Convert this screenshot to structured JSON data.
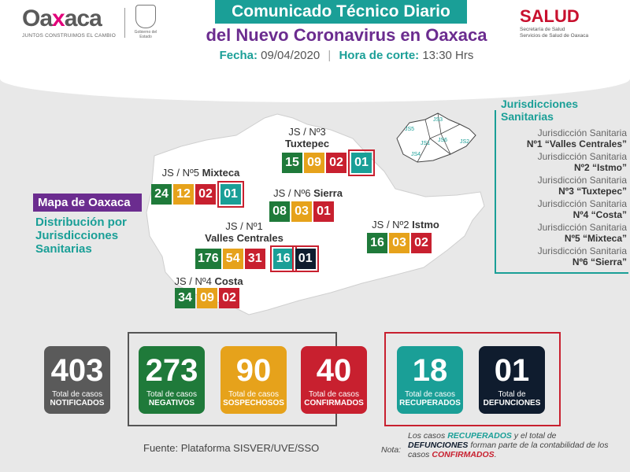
{
  "header": {
    "logo_word_a": "Oa",
    "logo_word_x": "x",
    "logo_word_b": "aca",
    "logo_tag": "JUNTOS CONSTRUIMOS EL CAMBIO",
    "seal_text": "Gobierno del Estado",
    "title_line1": "Comunicado Técnico Diario",
    "title_line2": "del Nuevo Coronavirus en Oaxaca",
    "fecha_label": "Fecha:",
    "fecha_value": "09/04/2020",
    "hora_label": "Hora de corte:",
    "hora_value": "13:30 Hrs",
    "salud_word": "SALUD",
    "salud_sub1": "Secretaría de Salud",
    "salud_sub2": "Servicios de Salud de Oaxaca"
  },
  "map": {
    "title": "Mapa de Oaxaca",
    "subtitle": "Distribución por Jurisdicciones Sanitarias",
    "jurisdictions": [
      {
        "id": "js3",
        "line1": "JS / Nº3",
        "line2": "Tuxtepec",
        "values": [
          "15",
          "09",
          "02",
          "01"
        ]
      },
      {
        "id": "js5",
        "line1": "JS / Nº5",
        "line2": "Mixteca",
        "values": [
          "24",
          "12",
          "02",
          "01"
        ]
      },
      {
        "id": "js6",
        "line1": "JS / Nº6",
        "line2": "Sierra",
        "values": [
          "08",
          "03",
          "01"
        ]
      },
      {
        "id": "js2",
        "line1": "JS / Nº2",
        "line2": "Istmo",
        "values": [
          "16",
          "03",
          "02"
        ]
      },
      {
        "id": "js1",
        "line1": "JS / Nº1",
        "line2": "Valles Centrales",
        "values": [
          "176",
          "54",
          "31",
          "16",
          "01"
        ]
      },
      {
        "id": "js4",
        "line1": "JS / Nº4",
        "line2": "Costa",
        "values": [
          "34",
          "09",
          "02"
        ]
      }
    ],
    "inset_labels": [
      "JS5",
      "JS3",
      "JS6",
      "JS1",
      "JS2",
      "JS4"
    ]
  },
  "legend": {
    "title": "Jurisdicciones Sanitarias",
    "items": [
      {
        "a": "Jurisdicción Sanitaria",
        "b": "Nº1 “Valles Centrales”"
      },
      {
        "a": "Jurisdicción Sanitaria",
        "b": "Nº2 “Istmo”"
      },
      {
        "a": "Jurisdicción Sanitaria",
        "b": "Nº3 “Tuxtepec”"
      },
      {
        "a": "Jurisdicción Sanitaria",
        "b": "Nº4 “Costa”"
      },
      {
        "a": "Jurisdicción Sanitaria",
        "b": "Nº5 “Mixteca”"
      },
      {
        "a": "Jurisdicción Sanitaria",
        "b": "Nº6 “Sierra”"
      }
    ]
  },
  "totals": [
    {
      "value": "403",
      "l1": "Total de casos",
      "l2": "NOTIFICADOS",
      "color": "#5a5a5a"
    },
    {
      "value": "273",
      "l1": "Total de casos",
      "l2": "NEGATIVOS",
      "color": "#1f7a3a"
    },
    {
      "value": "90",
      "l1": "Total de casos",
      "l2": "SOSPECHOSOS",
      "color": "#e6a21b"
    },
    {
      "value": "40",
      "l1": "Total de casos",
      "l2": "CONFIRMADOS",
      "color": "#c8202f"
    },
    {
      "value": "18",
      "l1": "Total de casos",
      "l2": "RECUPERADOS",
      "color": "#1a9f97"
    },
    {
      "value": "01",
      "l1": "Total de",
      "l2": "DEFUNCIONES",
      "color": "#0f1c2e"
    }
  ],
  "footer": {
    "source": "Fuente: Plataforma SISVER/UVE/SSO",
    "note_label": "Nota:",
    "note_p1": "Los casos ",
    "note_recuperados": "RECUPERADOS",
    "note_p2": " y el total de ",
    "note_defunciones": "DEFUNCIONES",
    "note_p3": " forman parte de la contabilidad de los casos ",
    "note_confirmados": "CONFIRMADOS",
    "note_p4": "."
  },
  "colors": {
    "teal": "#1a9f97",
    "purple": "#6b2c8f",
    "red": "#c8202f",
    "green": "#1f7a3a",
    "yellow": "#e6a21b",
    "navy": "#0f1c2e",
    "gray": "#5a5a5a"
  }
}
